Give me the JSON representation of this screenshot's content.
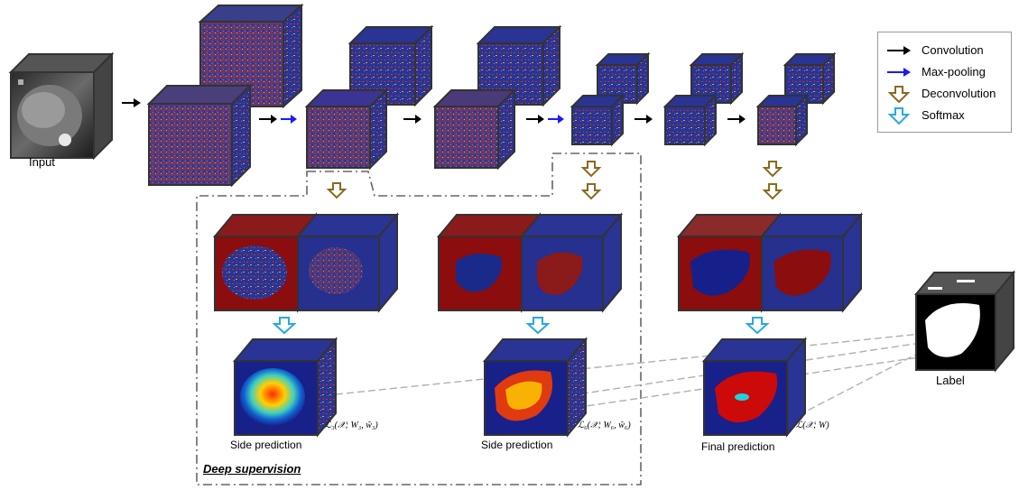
{
  "labels": {
    "input": "Input",
    "label": "Label",
    "side_prediction_1": "Side prediction",
    "side_prediction_2": "Side prediction",
    "final_prediction": "Final prediction",
    "deep_supervision": "Deep supervision"
  },
  "losses": {
    "loss_3": "ℒ₃(𝒳; W₃, ŵ₃)",
    "loss_6": "ℒ₆(𝒳; W₆, ŵ₆)",
    "loss_final": "ℒ(𝒳; W)"
  },
  "legend": [
    {
      "label": "Convolution",
      "icon": "black-arrow-icon",
      "color": "#000000"
    },
    {
      "label": "Max-pooling",
      "icon": "blue-arrow-icon",
      "color": "#1a1aff"
    },
    {
      "label": "Deconvolution",
      "icon": "brown-hollow-down-arrow-icon",
      "color": "#8a6a1f"
    },
    {
      "label": "Softmax",
      "icon": "cyan-hollow-down-arrow-icon",
      "color": "#29a8e0"
    }
  ],
  "colors": {
    "feature_blue": "#25308f",
    "liver_red": "#8b0d0d",
    "cube_frame": "#333333"
  }
}
